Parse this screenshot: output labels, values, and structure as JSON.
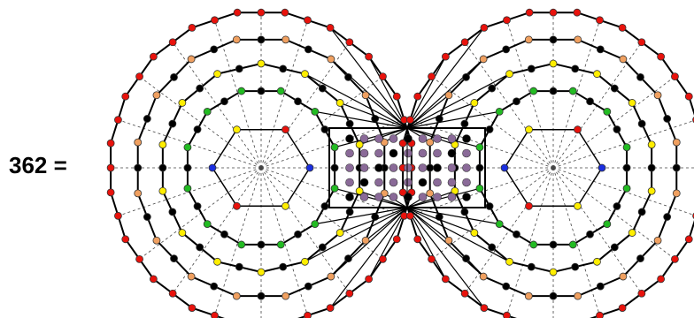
{
  "label": "362 ="
}
